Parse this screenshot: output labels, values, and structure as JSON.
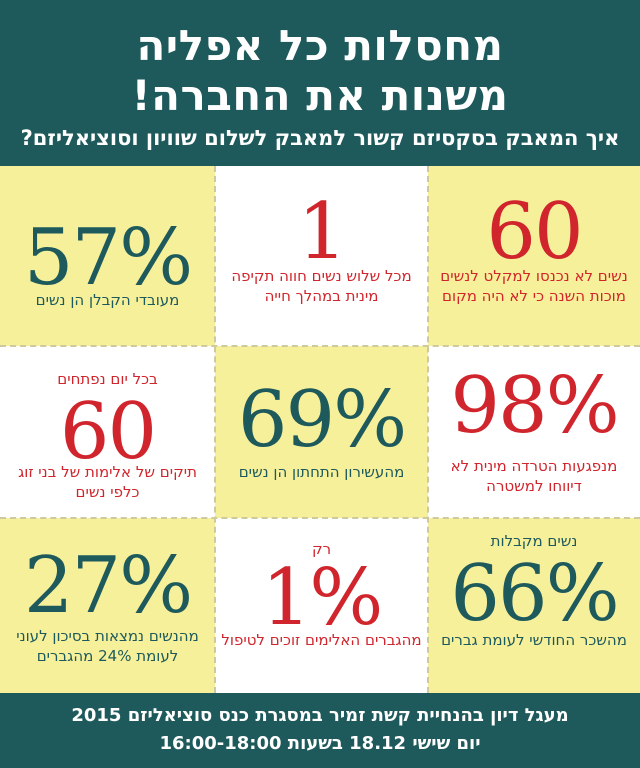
{
  "header": {
    "title_line1": "מחסלות כל אפליה",
    "title_line2": "משנות את החברה!",
    "subtitle": "איך המאבק בסקסיזם קשור למאבק לשלום שוויון וסוציאליזם?"
  },
  "stats": [
    {
      "pre": "",
      "value": "60",
      "caption": "נשים לא נכנסו למקלט לנשים מוכות השנה כי לא היה מקום"
    },
    {
      "pre": "",
      "value": "1",
      "caption": "מכל שלוש נשים חווה תקיפה מינית במהלך חייה"
    },
    {
      "pre": "",
      "value": "57%",
      "caption": "מעובדי הקבלן הן נשים"
    },
    {
      "pre": "",
      "value": "98%",
      "caption": "מנפגעות הטרדה מינית לא דיווחו למשטרה"
    },
    {
      "pre": "",
      "value": "69%",
      "caption": "מהעשירון התחתון הן נשים"
    },
    {
      "pre": "בכל יום נפתחים",
      "value": "60",
      "caption": "תיקים של אלימות של בני זוג כלפי נשים"
    },
    {
      "pre": "נשים מקבלות",
      "value": "66%",
      "caption": "מהשכר החודשי לעומת גברים"
    },
    {
      "pre": "רק",
      "value": "1%",
      "caption": "מהגברים האלימים זוכים לטיפול"
    },
    {
      "pre": "",
      "value": "27%",
      "caption": "מהנשים נמצאות בסיכון לעוני לעומת 24% מהגברים"
    }
  ],
  "footer": {
    "line1": "מעגל דיון בהנחיית קשת זמיר במסגרת כנס סוציאליזם 2015",
    "line2": "יום שישי 18.12 בשעות 16:00-18:00"
  },
  "colors": {
    "teal": "#1e5a5c",
    "red": "#d0252c",
    "yellow": "#f7f09a"
  }
}
